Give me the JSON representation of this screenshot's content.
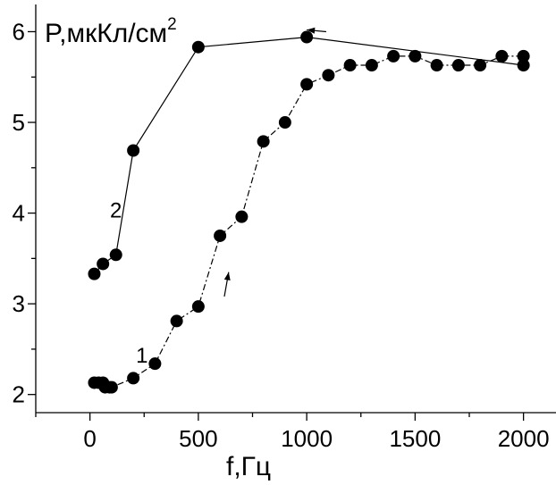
{
  "chart_data": {
    "type": "line",
    "ylabel": "P,мкКл/см",
    "ylabel_sup": "2",
    "xlabel": "f,Гц",
    "xlim": [
      -250,
      2150
    ],
    "ylim": [
      1.8,
      6.3
    ],
    "xticks": [
      0,
      500,
      1000,
      1500,
      2000
    ],
    "yticks": [
      2,
      3,
      4,
      5,
      6
    ],
    "grid": false,
    "series": [
      {
        "name": "1",
        "line_style": "dash-dot",
        "points": [
          [
            20,
            2.13
          ],
          [
            40,
            2.13
          ],
          [
            60,
            2.13
          ],
          [
            70,
            2.08
          ],
          [
            90,
            2.08
          ],
          [
            100,
            2.08
          ],
          [
            200,
            2.18
          ],
          [
            300,
            2.34
          ],
          [
            400,
            2.81
          ],
          [
            500,
            2.97
          ],
          [
            600,
            3.75
          ],
          [
            700,
            3.96
          ],
          [
            800,
            4.79
          ],
          [
            900,
            5.0
          ],
          [
            1000,
            5.42
          ],
          [
            1100,
            5.52
          ],
          [
            1200,
            5.63
          ],
          [
            1300,
            5.63
          ],
          [
            1400,
            5.73
          ],
          [
            1500,
            5.73
          ],
          [
            1600,
            5.63
          ],
          [
            1700,
            5.63
          ],
          [
            1800,
            5.63
          ],
          [
            1900,
            5.73
          ],
          [
            2000,
            5.73
          ]
        ]
      },
      {
        "name": "2",
        "line_style": "solid",
        "points": [
          [
            2000,
            5.63
          ],
          [
            1000,
            5.94
          ],
          [
            500,
            5.83
          ],
          [
            200,
            4.69
          ],
          [
            120,
            3.54
          ],
          [
            60,
            3.44
          ],
          [
            20,
            3.33
          ]
        ]
      }
    ],
    "annotations": [
      {
        "text": "1",
        "x": 240,
        "y": 2.35
      },
      {
        "text": "2",
        "x": 120,
        "y": 3.95
      }
    ],
    "arrows": [
      {
        "from": [
          1090,
          6.0
        ],
        "to": [
          1000,
          6.02
        ]
      },
      {
        "from": [
          620,
          3.08
        ],
        "to": [
          640,
          3.35
        ]
      }
    ]
  }
}
